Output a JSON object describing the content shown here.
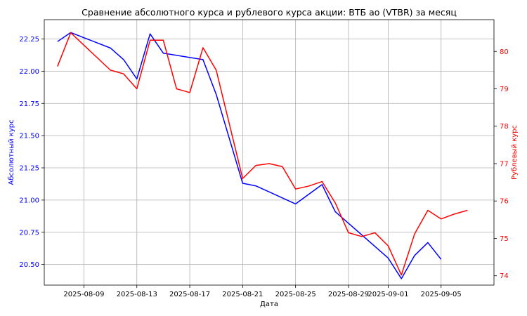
{
  "chart_data": {
    "type": "line",
    "title": "Сравнение абсолютного курса и рублевого курса акции: ВТБ ао (VTBR) за месяц",
    "xlabel": "Дата",
    "ylabel_left": "Абсолютный курс",
    "ylabel_right": "Рублевый курс",
    "x_tick_labels": [
      "2025-08-09",
      "2025-08-13",
      "2025-08-17",
      "2025-08-21",
      "2025-08-25",
      "2025-08-29",
      "2025-09-01",
      "2025-09-05"
    ],
    "x_tick_dates": [
      "2025-08-09",
      "2025-08-13",
      "2025-08-17",
      "2025-08-21",
      "2025-08-25",
      "2025-08-29",
      "2025-09-01",
      "2025-09-05"
    ],
    "xlim": [
      "2025-08-06",
      "2025-09-09"
    ],
    "ylim_left": [
      20.34,
      22.4
    ],
    "ylim_right": [
      73.75,
      80.85
    ],
    "yticks_left": [
      "20.50",
      "20.75",
      "21.00",
      "21.25",
      "21.50",
      "21.75",
      "22.00",
      "22.25"
    ],
    "yticks_right": [
      "74",
      "75",
      "76",
      "77",
      "78",
      "79",
      "80"
    ],
    "grid": true,
    "colors": {
      "left": "#0000ff",
      "right": "#ff0000"
    },
    "series": [
      {
        "axis": "left",
        "points": [
          [
            "2025-08-07",
            22.23
          ],
          [
            "2025-08-08",
            22.3
          ],
          [
            "2025-08-11",
            22.18
          ],
          [
            "2025-08-12",
            22.09
          ],
          [
            "2025-08-13",
            21.94
          ],
          [
            "2025-08-14",
            22.29
          ],
          [
            "2025-08-15",
            22.14
          ],
          [
            "2025-08-18",
            22.09
          ],
          [
            "2025-08-19",
            21.82
          ],
          [
            "2025-08-21",
            21.13
          ],
          [
            "2025-08-22",
            21.11
          ],
          [
            "2025-08-25",
            20.97
          ],
          [
            "2025-08-27",
            21.12
          ],
          [
            "2025-08-28",
            20.91
          ],
          [
            "2025-08-29",
            20.82
          ],
          [
            "2025-09-01",
            20.55
          ],
          [
            "2025-09-02",
            20.39
          ],
          [
            "2025-09-03",
            20.57
          ],
          [
            "2025-09-04",
            20.67
          ],
          [
            "2025-09-05",
            20.54
          ]
        ]
      },
      {
        "axis": "right",
        "points": [
          [
            "2025-08-07",
            79.6
          ],
          [
            "2025-08-08",
            80.5
          ],
          [
            "2025-08-11",
            79.5
          ],
          [
            "2025-08-12",
            79.4
          ],
          [
            "2025-08-13",
            79.0
          ],
          [
            "2025-08-14",
            80.3
          ],
          [
            "2025-08-15",
            80.3
          ],
          [
            "2025-08-16",
            79.0
          ],
          [
            "2025-08-17",
            78.9
          ],
          [
            "2025-08-18",
            80.1
          ],
          [
            "2025-08-19",
            79.5
          ],
          [
            "2025-08-21",
            76.6
          ],
          [
            "2025-08-22",
            76.95
          ],
          [
            "2025-08-23",
            77.0
          ],
          [
            "2025-08-24",
            76.92
          ],
          [
            "2025-08-25",
            76.32
          ],
          [
            "2025-08-26",
            76.4
          ],
          [
            "2025-08-27",
            76.52
          ],
          [
            "2025-08-28",
            75.95
          ],
          [
            "2025-08-29",
            75.15
          ],
          [
            "2025-08-30",
            75.05
          ],
          [
            "2025-08-31",
            75.15
          ],
          [
            "2025-09-01",
            74.8
          ],
          [
            "2025-09-02",
            74.02
          ],
          [
            "2025-09-03",
            75.12
          ],
          [
            "2025-09-04",
            75.75
          ],
          [
            "2025-09-05",
            75.52
          ],
          [
            "2025-09-06",
            75.65
          ],
          [
            "2025-09-07",
            75.75
          ]
        ]
      }
    ]
  }
}
